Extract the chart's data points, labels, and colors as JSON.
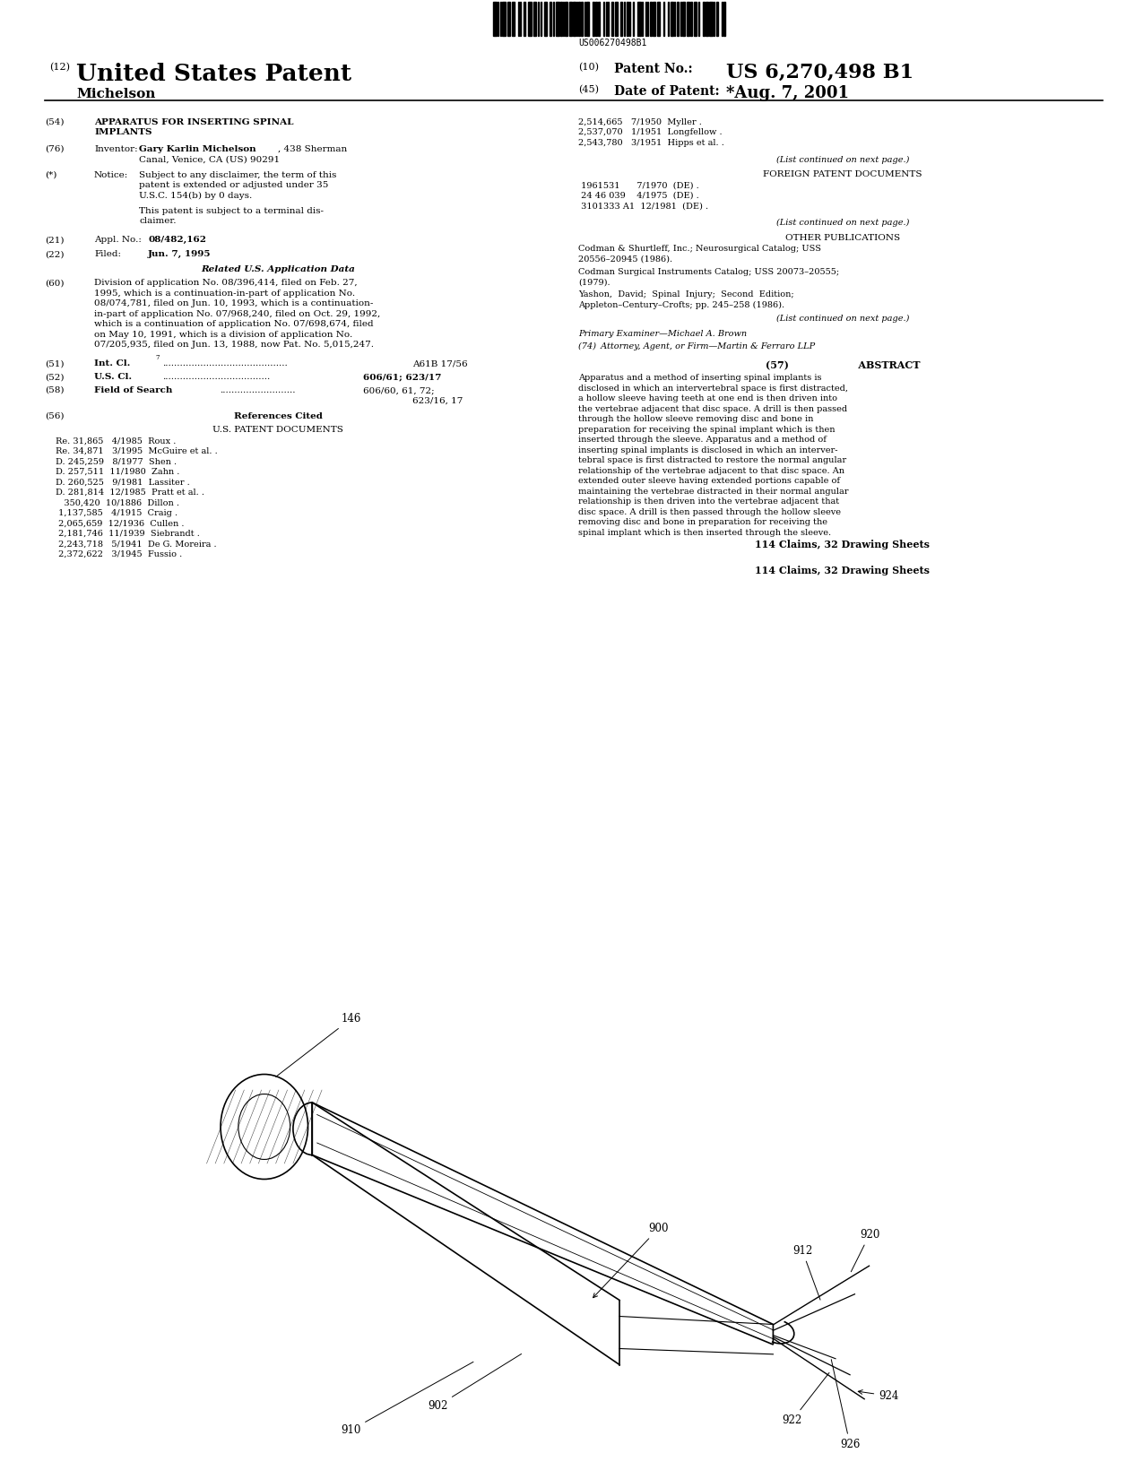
{
  "background_color": "#ffffff",
  "barcode_text": "US006270498B1",
  "patent_number": "US 6,270,498 B1",
  "patent_date": "*Aug. 7, 2001",
  "inventor_last": "Michelson",
  "us_patents_left": [
    "Re. 31,865   4/1985  Roux .",
    "Re. 34,871   3/1995  McGuire et al. .",
    "D. 245,259   8/1977  Shen .",
    "D. 257,511  11/1980  Zahn .",
    "D. 260,525   9/1981  Lassiter .",
    "D. 281,814  12/1985  Pratt et al. .",
    "   350,420  10/1886  Dillon .",
    " 1,137,585   4/1915  Craig .",
    " 2,065,659  12/1936  Cullen .",
    " 2,181,746  11/1939  Siebrandt .",
    " 2,243,718   5/1941  De G. Moreira .",
    " 2,372,622   3/1945  Fussio ."
  ],
  "us_patents_right": [
    "2,514,665   7/1950  Myller .",
    "2,537,070   1/1951  Longfellow .",
    "2,543,780   3/1951  Hipps et al. ."
  ],
  "foreign_patents": [
    " 1961531      7/1970  (DE) .",
    " 24 46 039    4/1975  (DE) .",
    " 3101333 A1  12/1981  (DE) ."
  ],
  "claims_line": "114 Claims, 32 Drawing Sheets",
  "abstract_text": "Apparatus and a method of inserting spinal implants is\ndisclosed in which an intervertebral space is first distracted,\na hollow sleeve having teeth at one end is then driven into\nthe vertebrae adjacent that disc space. A drill is then passed\nthrough the hollow sleeve removing disc and bone in\npreparation for receiving the spinal implant which is then\ninserted through the sleeve. Apparatus and a method of\ninserting spinal implants is disclosed in which an interver-\ntebral space is first distracted to restore the normal angular\nrelationship of the vertebrae adjacent to that disc space. An\nextended outer sleeve having extended portions capable of\nmaintaining the vertebrae distracted in their normal angular\nrelationship is then driven into the vertebrae adjacent that\ndisc space. A drill is then passed through the hollow sleeve\nremoving disc and bone in preparation for receiving the\nspinal implant which is then inserted through the sleeve."
}
